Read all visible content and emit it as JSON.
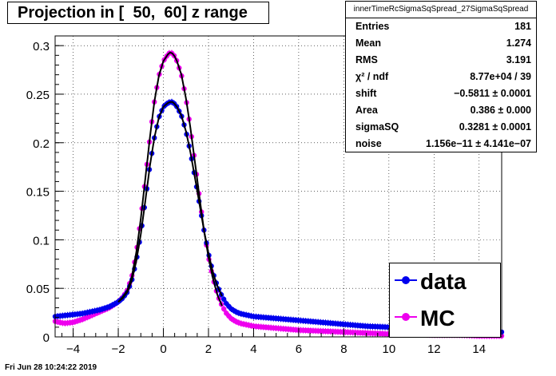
{
  "chart_data": {
    "type": "scatter",
    "title": "Projection in [  50,  60] z range",
    "xlim": [
      -4.8,
      15.0
    ],
    "ylim": [
      0,
      0.31
    ],
    "xticks": [
      -4,
      -2,
      0,
      2,
      4,
      6,
      8,
      10,
      12,
      14
    ],
    "yticks": [
      0,
      0.05,
      0.1,
      0.15,
      0.2,
      0.25,
      0.3
    ],
    "x_tick_labels": [
      "−4",
      "−2",
      "0",
      "2",
      "4",
      "6",
      "8",
      "10",
      "12",
      "14"
    ],
    "y_tick_labels": [
      "0",
      "0.05",
      "0.1",
      "0.15",
      "0.2",
      "0.25",
      "0.3"
    ],
    "grid": true,
    "legend_position": "bottom-right",
    "series": [
      {
        "name": "data",
        "color": "#0000ee",
        "x": [
          -4.8,
          -4.4,
          -4.0,
          -3.6,
          -3.2,
          -2.8,
          -2.4,
          -2.0,
          -1.8,
          -1.6,
          -1.4,
          -1.2,
          -1.0,
          -0.8,
          -0.6,
          -0.4,
          -0.2,
          0.0,
          0.2,
          0.3,
          0.4,
          0.5,
          0.6,
          0.8,
          1.0,
          1.2,
          1.4,
          1.6,
          1.8,
          2.0,
          2.2,
          2.4,
          2.6,
          2.8,
          3.0,
          3.2,
          3.4,
          3.6,
          3.8,
          4.0,
          4.5,
          5.0,
          6.0,
          7.0,
          8.0,
          9.0,
          10.0,
          11.0,
          12.0,
          13.0,
          14.0,
          15.0
        ],
        "y": [
          0.021,
          0.022,
          0.023,
          0.024,
          0.026,
          0.028,
          0.031,
          0.036,
          0.04,
          0.046,
          0.058,
          0.078,
          0.106,
          0.14,
          0.176,
          0.205,
          0.226,
          0.237,
          0.241,
          0.242,
          0.242,
          0.24,
          0.237,
          0.228,
          0.212,
          0.19,
          0.164,
          0.137,
          0.11,
          0.086,
          0.066,
          0.052,
          0.042,
          0.034,
          0.029,
          0.026,
          0.024,
          0.023,
          0.022,
          0.021,
          0.02,
          0.019,
          0.017,
          0.015,
          0.013,
          0.011,
          0.01,
          0.009,
          0.008,
          0.007,
          0.006,
          0.005
        ]
      },
      {
        "name": "MC",
        "color": "#ee00ee",
        "x": [
          -4.8,
          -4.4,
          -4.0,
          -3.6,
          -3.2,
          -2.8,
          -2.4,
          -2.0,
          -1.8,
          -1.6,
          -1.4,
          -1.2,
          -1.0,
          -0.8,
          -0.6,
          -0.4,
          -0.2,
          0.0,
          0.2,
          0.3,
          0.4,
          0.5,
          0.6,
          0.8,
          1.0,
          1.2,
          1.4,
          1.6,
          1.8,
          2.0,
          2.2,
          2.4,
          2.6,
          2.8,
          3.0,
          3.2,
          3.4,
          3.6,
          3.8,
          4.0,
          4.5,
          5.0,
          6.0,
          7.0,
          8.0,
          9.0,
          10.0,
          11.0,
          12.0,
          13.0,
          14.0,
          15.0
        ],
        "y": [
          0.016,
          0.014,
          0.015,
          0.018,
          0.022,
          0.026,
          0.03,
          0.036,
          0.041,
          0.048,
          0.062,
          0.087,
          0.122,
          0.163,
          0.205,
          0.242,
          0.269,
          0.284,
          0.291,
          0.293,
          0.292,
          0.289,
          0.284,
          0.27,
          0.246,
          0.215,
          0.18,
          0.144,
          0.11,
          0.082,
          0.06,
          0.043,
          0.032,
          0.024,
          0.019,
          0.016,
          0.014,
          0.013,
          0.012,
          0.011,
          0.01,
          0.009,
          0.007,
          0.006,
          0.005,
          0.004,
          0.003,
          0.003,
          0.002,
          0.002,
          0.001,
          0.001
        ]
      }
    ],
    "fit_curves": [
      {
        "series": "data",
        "color": "#000000",
        "x_range": [
          -2.0,
          2.6
        ]
      },
      {
        "series": "MC",
        "color": "#000000",
        "x_range": [
          -2.0,
          2.6
        ]
      }
    ]
  },
  "stats": {
    "name": "innerTimeRcSigmaSqSpread_27SigmaSqSpread",
    "rows": [
      {
        "label": "Entries",
        "value": "181"
      },
      {
        "label": "Mean",
        "value": "1.274"
      },
      {
        "label": "RMS",
        "value": "3.191"
      },
      {
        "label": "χ² / ndf",
        "value": "8.77e+04 / 39"
      },
      {
        "label": "shift",
        "value": "−0.5811 ± 0.0001"
      },
      {
        "label": "Area",
        "value": "0.386 ± 0.000"
      },
      {
        "label": "sigmaSQ",
        "value": "0.3281 ± 0.0001"
      },
      {
        "label": "noise",
        "value": "1.156e−11 ± 4.141e−07"
      }
    ]
  },
  "legend": [
    {
      "label": "data",
      "color": "#0000ee"
    },
    {
      "label": "MC",
      "color": "#ee00ee"
    }
  ],
  "timestamp": "Fri Jun 28 10:24:22 2019"
}
